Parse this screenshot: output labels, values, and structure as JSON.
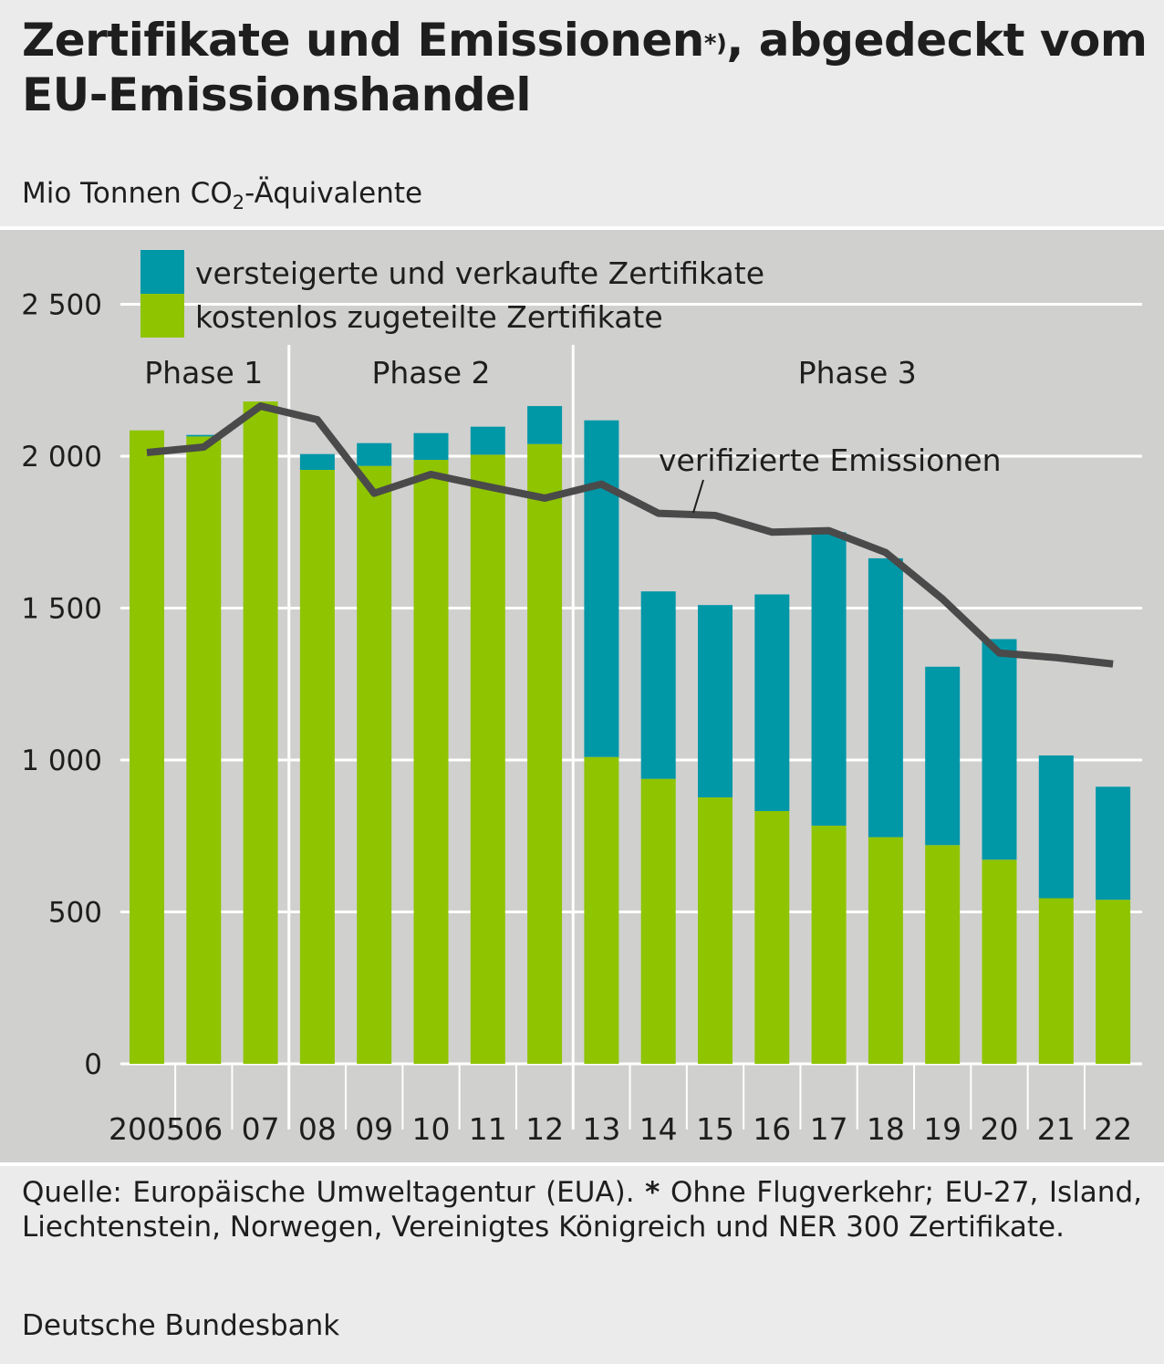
{
  "title": {
    "line1": "Zertifikate und Emissionen",
    "footnote_mark": "*)",
    "line1_end": ", abgedeckt vom",
    "line2": "EU-Emissionshandel"
  },
  "subtitle": {
    "pre": "Mio Tonnen CO",
    "sub": "2",
    "post": "-Äquivalente"
  },
  "footer": {
    "source": "Quelle: Europäische Umweltagentur (EUA).",
    "star": "*",
    "note": "Ohne Flugverkehr; EU-27, Island, Liechtenstein, Norwegen, Vereinigtes Königreich und NER 300 Zertifikate.",
    "publisher": "Deutsche Bundesbank"
  },
  "colors": {
    "free": "#8fc400",
    "auctioned": "#0097a7",
    "emissions": "#4a4a4a",
    "grid": "#ffffff",
    "background": "#d0d0cf"
  },
  "chart_data": {
    "type": "bar",
    "stacked": true,
    "categories": [
      "2005",
      "06",
      "07",
      "08",
      "09",
      "10",
      "11",
      "12",
      "13",
      "14",
      "15",
      "16",
      "17",
      "18",
      "19",
      "20",
      "21",
      "22"
    ],
    "series": [
      {
        "name": "kostenlos zugeteilte Zertifikate",
        "color": "#8fc400",
        "values": [
          2085,
          2065,
          2180,
          1955,
          1968,
          1988,
          2005,
          2040,
          1010,
          938,
          877,
          832,
          784,
          746,
          720,
          672,
          545,
          540
        ]
      },
      {
        "name": "versteigerte und verkaufte Zertifikate",
        "color": "#0097a7",
        "values": [
          0,
          5,
          0,
          52,
          75,
          88,
          92,
          125,
          1108,
          617,
          633,
          713,
          966,
          918,
          587,
          726,
          470,
          372
        ]
      }
    ],
    "line": {
      "name": "verifizierte Emissionen",
      "color": "#4a4a4a",
      "values": [
        2012,
        2030,
        2165,
        2120,
        1878,
        1940,
        1900,
        1862,
        1908,
        1812,
        1805,
        1750,
        1755,
        1683,
        1530,
        1352,
        1337,
        1316
      ]
    },
    "phases": [
      {
        "label": "Phase 1",
        "first": 0,
        "last": 2
      },
      {
        "label": "Phase 2",
        "first": 3,
        "last": 7
      },
      {
        "label": "Phase 3",
        "first": 8,
        "last": 17
      }
    ],
    "y_ticks": [
      {
        "value": 0,
        "label": "0"
      },
      {
        "value": 500,
        "label": "500"
      },
      {
        "value": 1000,
        "label": "1 000"
      },
      {
        "value": 1500,
        "label": "1 500"
      },
      {
        "value": 2000,
        "label": "2 000"
      },
      {
        "value": 2500,
        "label": "2 500"
      }
    ],
    "ylim": [
      0,
      2700
    ],
    "grid": true,
    "legend_placement": "top-left"
  }
}
